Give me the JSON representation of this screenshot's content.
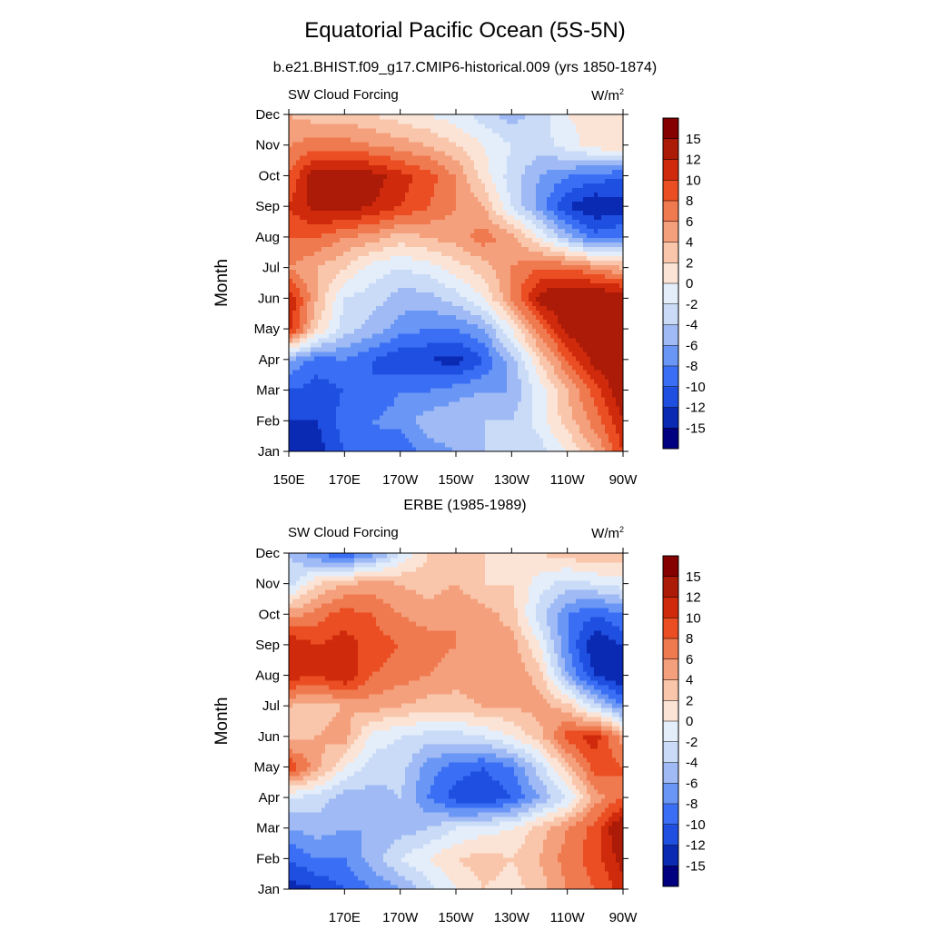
{
  "title": "Equatorial Pacific Ocean (5S-5N)",
  "colors": [
    "#000080",
    "#0a2ab4",
    "#1f4fe0",
    "#3a6ff5",
    "#6a96f5",
    "#9fbaf4",
    "#c9dbf7",
    "#e4eefb",
    "#fbe4d6",
    "#f9c6ab",
    "#f5a07c",
    "#f07a50",
    "#ea4e22",
    "#d02a0c",
    "#ac1a08",
    "#850000"
  ],
  "chart_data": [
    {
      "type": "heatmap",
      "heading": "b.e21.BHIST.f09_g17.CMIP6-historical.009 (yrs 1850-1874)",
      "left_label": "SW Cloud Forcing",
      "unit_base": "W/m",
      "unit_sup": "2",
      "ylabel": "Month",
      "xlabel": "",
      "x_ticks": [
        "150E",
        "170E",
        "170W",
        "150W",
        "130W",
        "110W",
        "90W"
      ],
      "x_range": [
        150,
        270
      ],
      "y_ticks": [
        "Jan",
        "Feb",
        "Mar",
        "Apr",
        "May",
        "Jun",
        "Jul",
        "Aug",
        "Sep",
        "Oct",
        "Nov",
        "Dec"
      ],
      "colorbar_labels": [
        "-15",
        "-12",
        "-10",
        "-8",
        "-6",
        "-4",
        "-2",
        "0",
        "2",
        "4",
        "6",
        "8",
        "10",
        "12",
        "15"
      ],
      "colorbar_levels": [
        -15,
        -12,
        -10,
        -8,
        -6,
        -4,
        -2,
        0,
        2,
        4,
        6,
        8,
        10,
        12,
        15
      ],
      "columns_lon": [
        150,
        160,
        170,
        180,
        190,
        200,
        210,
        220,
        230,
        240,
        250,
        260,
        270
      ],
      "values": [
        [
          -14,
          -13,
          -10,
          -9,
          -10,
          -7,
          -6,
          -4,
          -4,
          -3,
          0,
          4,
          10
        ],
        [
          -12,
          -12,
          -9,
          -8,
          -7,
          -5,
          -4,
          -4,
          -4,
          -1,
          3,
          7,
          12
        ],
        [
          -10,
          -11,
          -10,
          -10,
          -8,
          -8,
          -7,
          -6,
          -6,
          -1,
          4,
          9,
          14
        ],
        [
          -6,
          -9,
          -8,
          -10,
          -12,
          -12,
          -13,
          -10,
          -5,
          2,
          8,
          13,
          15
        ],
        [
          11,
          2,
          -3,
          -5,
          -7,
          -8,
          -8,
          -6,
          0,
          7,
          13,
          15,
          15
        ],
        [
          12,
          4,
          -2,
          -3,
          -5,
          -5,
          -3,
          0,
          6,
          13,
          15,
          15,
          14
        ],
        [
          6,
          4,
          2,
          -1,
          -2,
          -1,
          1,
          3,
          6,
          8,
          8,
          6,
          4
        ],
        [
          8,
          8,
          6,
          5,
          3,
          4,
          5,
          7,
          5,
          0,
          -5,
          -9,
          -8
        ],
        [
          10,
          13,
          13,
          12,
          10,
          8,
          6,
          4,
          -2,
          -7,
          -12,
          -14,
          -13
        ],
        [
          8,
          14,
          14,
          13,
          11,
          9,
          6,
          1,
          -3,
          -6,
          -8,
          -9,
          -10
        ],
        [
          6,
          7,
          7,
          6,
          5,
          4,
          2,
          0,
          -2,
          -3,
          -1,
          1,
          2
        ],
        [
          4,
          3,
          3,
          2,
          1,
          0,
          -1,
          -3,
          -5,
          -3,
          0,
          1,
          2
        ]
      ]
    },
    {
      "type": "heatmap",
      "heading": "ERBE (1985-1989)",
      "left_label": "SW Cloud Forcing",
      "unit_base": "W/m",
      "unit_sup": "2",
      "ylabel": "Month",
      "xlabel": "",
      "x_ticks": [
        "170E",
        "170W",
        "150W",
        "130W",
        "110W",
        "90W"
      ],
      "x_range": [
        150,
        270
      ],
      "y_ticks": [
        "Jan",
        "Feb",
        "Mar",
        "Apr",
        "May",
        "Jun",
        "Jul",
        "Aug",
        "Sep",
        "Oct",
        "Nov",
        "Dec"
      ],
      "colorbar_labels": [
        "-15",
        "-12",
        "-10",
        "-8",
        "-6",
        "-4",
        "-2",
        "0",
        "2",
        "4",
        "6",
        "8",
        "10",
        "12",
        "15"
      ],
      "colorbar_levels": [
        -15,
        -12,
        -10,
        -8,
        -6,
        -4,
        -2,
        0,
        2,
        4,
        6,
        8,
        10,
        12,
        15
      ],
      "columns_lon": [
        150,
        160,
        170,
        180,
        190,
        200,
        210,
        220,
        230,
        240,
        250,
        260,
        270
      ],
      "values": [
        [
          -13,
          -12,
          -10,
          -8,
          -6,
          -3,
          0,
          2,
          1,
          3,
          6,
          8,
          11
        ],
        [
          -10,
          -8,
          -8,
          -5,
          -2,
          0,
          2,
          3,
          2,
          4,
          7,
          9,
          13
        ],
        [
          -6,
          -5,
          -6,
          -6,
          -5,
          -4,
          -2,
          -1,
          0,
          3,
          6,
          9,
          15
        ],
        [
          -2,
          -3,
          -5,
          -5,
          -4,
          -8,
          -11,
          -12,
          -10,
          -6,
          -2,
          5,
          8
        ],
        [
          10,
          5,
          0,
          -3,
          -3,
          -7,
          -9,
          -10,
          -8,
          -3,
          3,
          9,
          8
        ],
        [
          3,
          4,
          5,
          -1,
          -2,
          -3,
          -3,
          -2,
          0,
          3,
          9,
          11,
          5
        ],
        [
          4,
          3,
          4,
          5,
          4,
          3,
          3,
          4,
          4,
          5,
          3,
          -3,
          -8
        ],
        [
          11,
          10,
          12,
          8,
          7,
          6,
          5,
          6,
          6,
          3,
          -6,
          -12,
          -14
        ],
        [
          12,
          10,
          11,
          9,
          8,
          7,
          6,
          5,
          5,
          0,
          -8,
          -14,
          -12
        ],
        [
          5,
          7,
          9,
          8,
          6,
          5,
          6,
          5,
          3,
          -3,
          -8,
          -10,
          -8
        ],
        [
          -3,
          2,
          4,
          5,
          4,
          3,
          4,
          2,
          2,
          -1,
          -3,
          -2,
          -1
        ],
        [
          -4,
          -8,
          -10,
          -7,
          -2,
          2,
          3,
          2,
          1,
          2,
          3,
          4,
          3
        ]
      ]
    }
  ]
}
